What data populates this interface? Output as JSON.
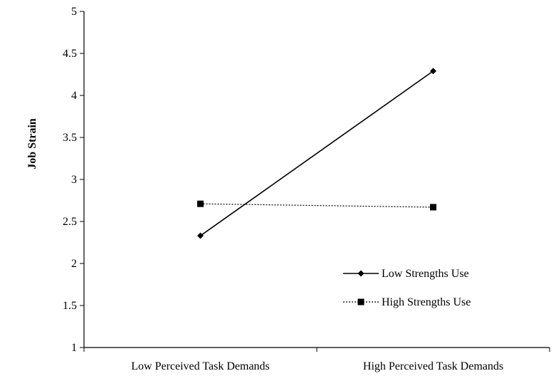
{
  "chart_data": {
    "type": "line",
    "categories": [
      "Low Perceived Task Demands",
      "High Perceived Task Demands"
    ],
    "series": [
      {
        "name": "Low Strengths Use",
        "values": [
          2.33,
          4.29
        ],
        "color": "#000000",
        "dash": "solid",
        "marker": "diamond"
      },
      {
        "name": "High Strengths Use",
        "values": [
          2.71,
          2.67
        ],
        "color": "#000000",
        "dash": "dotted",
        "marker": "square"
      }
    ],
    "title": "",
    "xlabel": "",
    "ylabel": "Job Strain",
    "ylim": [
      1,
      5
    ],
    "yticks": [
      "1",
      "1.5",
      "2",
      "2.5",
      "3",
      "3.5",
      "4",
      "4.5",
      "5"
    ],
    "grid": false,
    "legend_position": "bottom-right"
  }
}
